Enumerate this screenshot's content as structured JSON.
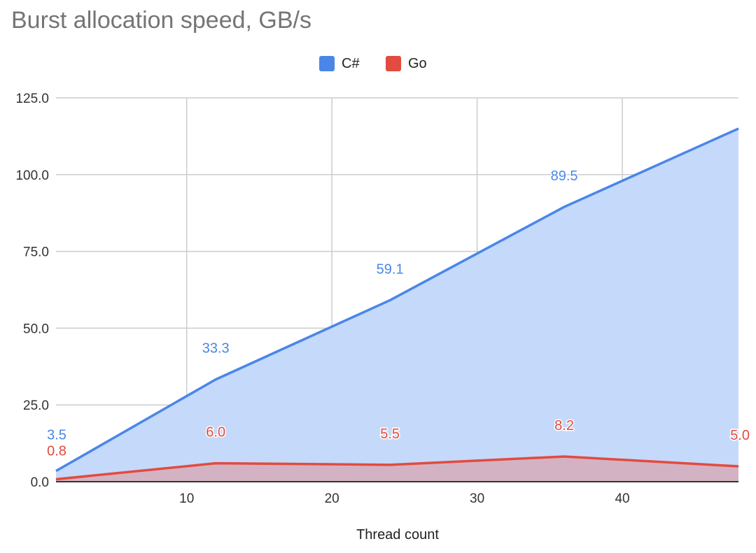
{
  "chart_data": {
    "type": "area",
    "title": "Burst allocation speed, GB/s",
    "xlabel": "Thread count",
    "ylabel": "",
    "xlim": [
      1,
      48
    ],
    "ylim": [
      0,
      125
    ],
    "x_ticks": [
      10,
      20,
      30,
      40
    ],
    "x_tick_labels": [
      "10",
      "20",
      "30",
      "40"
    ],
    "y_ticks": [
      0,
      25,
      50,
      75,
      100,
      125
    ],
    "y_tick_labels": [
      "0.0",
      "25.0",
      "50.0",
      "75.0",
      "100.0",
      "125.0"
    ],
    "grid": true,
    "legend_position": "top",
    "series": [
      {
        "name": "C#",
        "color": "#4a86e8",
        "fill": "#c5d9fb",
        "x": [
          1,
          12,
          24,
          36,
          48
        ],
        "values": [
          3.5,
          33.3,
          59.1,
          89.5,
          115.0
        ],
        "data_labels": [
          "3.5",
          "33.3",
          "59.1",
          "89.5",
          ""
        ]
      },
      {
        "name": "Go",
        "color": "#e24b3f",
        "fill": "#d5abb9",
        "x": [
          1,
          12,
          24,
          36,
          48
        ],
        "values": [
          0.8,
          6.0,
          5.5,
          8.2,
          5.0
        ],
        "data_labels": [
          "0.8",
          "6.0",
          "5.5",
          "8.2",
          "5.0"
        ]
      }
    ]
  }
}
